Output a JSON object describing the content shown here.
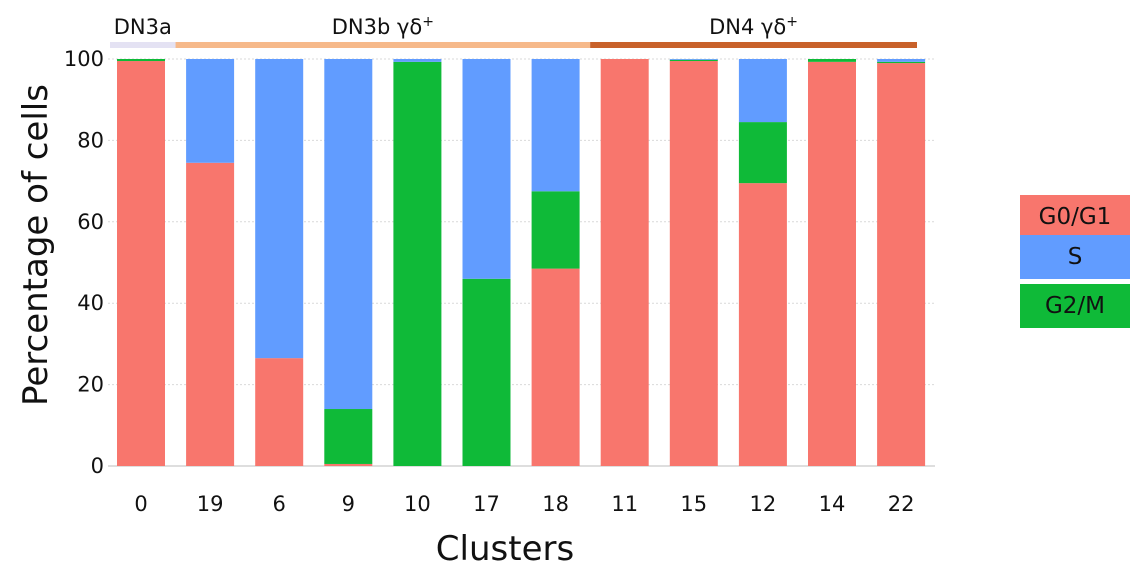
{
  "chart_data": {
    "type": "bar",
    "stacked": true,
    "xlabel": "Clusters",
    "ylabel": "Percentage of cells",
    "ylim": [
      0,
      100
    ],
    "yticks": [
      0,
      20,
      40,
      60,
      80,
      100
    ],
    "grid": true,
    "legend_position": "right",
    "categories": [
      "0",
      "19",
      "6",
      "9",
      "10",
      "17",
      "18",
      "11",
      "15",
      "12",
      "14",
      "22"
    ],
    "series": [
      {
        "name": "G0/G1",
        "color": "#F8766D",
        "values": [
          99.5,
          74.5,
          26.5,
          0.5,
          0,
          0,
          48.5,
          100,
          99.5,
          69.5,
          99.3,
          99
        ]
      },
      {
        "name": "G2/M",
        "color": "#0FBA38",
        "values": [
          0.5,
          0,
          0,
          13.5,
          99.3,
          46,
          19,
          0,
          0.3,
          15,
          0.7,
          0.3
        ]
      },
      {
        "name": "S",
        "color": "#619CFF",
        "values": [
          0,
          25.5,
          73.5,
          86,
          0.7,
          54,
          32.5,
          0,
          0.2,
          15.5,
          0,
          0.7
        ]
      }
    ],
    "legend": [
      {
        "label": "G0/G1",
        "color": "#F8766D"
      },
      {
        "label": "S",
        "color": "#619CFF"
      },
      {
        "label": "G2/M",
        "color": "#0FBA38"
      }
    ],
    "groups": [
      {
        "label": "DN3a",
        "sup": "",
        "color": "#E4E2F3",
        "first": 0,
        "last": 0
      },
      {
        "label": "DN3b γδ",
        "sup": "+",
        "color": "#F6B98A",
        "first": 1,
        "last": 6
      },
      {
        "label": "DN4 γδ",
        "sup": "+",
        "color": "#C8612A",
        "first": 7,
        "last": 11
      }
    ]
  }
}
